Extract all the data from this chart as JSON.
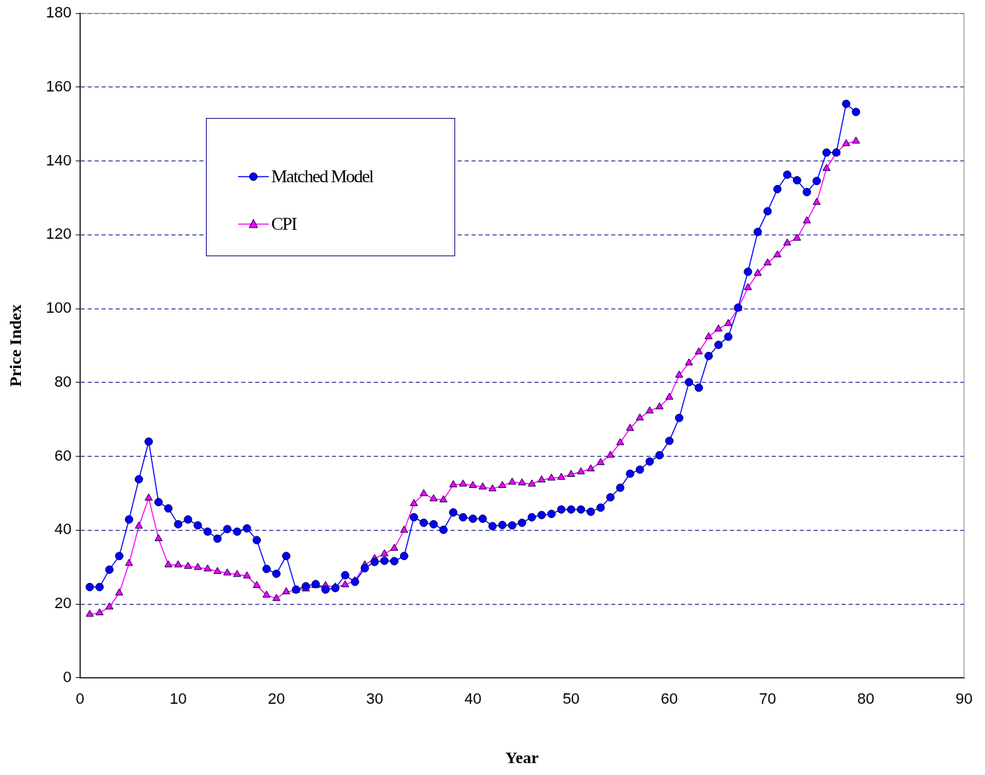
{
  "chart_data": {
    "type": "line",
    "xlabel": "Year",
    "ylabel": "Price Index",
    "x": [
      1,
      2,
      3,
      4,
      5,
      6,
      7,
      8,
      9,
      10,
      11,
      12,
      13,
      14,
      15,
      16,
      17,
      18,
      19,
      20,
      21,
      22,
      23,
      24,
      25,
      26,
      27,
      28,
      29,
      30,
      31,
      32,
      33,
      34,
      35,
      36,
      37,
      38,
      39,
      40,
      41,
      42,
      43,
      44,
      45,
      46,
      47,
      48,
      49,
      50,
      51,
      52,
      53,
      54,
      55,
      56,
      57,
      58,
      59,
      60,
      61,
      62,
      63,
      64,
      65,
      66,
      67,
      68,
      69,
      70,
      71,
      72,
      73,
      74,
      75,
      76,
      77,
      78,
      79
    ],
    "series": [
      {
        "name": "Matched Model",
        "color": "#0000ff",
        "marker": "circle",
        "values": [
          24.6,
          24.6,
          29.3,
          33.0,
          42.9,
          53.8,
          64.0,
          47.6,
          45.9,
          41.6,
          42.9,
          41.3,
          39.6,
          37.7,
          40.3,
          39.6,
          40.5,
          37.3,
          29.5,
          28.2,
          33.0,
          23.9,
          24.8,
          25.4,
          23.9,
          24.3,
          27.8,
          26.0,
          29.7,
          31.4,
          31.7,
          31.6,
          33.0,
          43.5,
          42.0,
          41.6,
          40.1,
          44.8,
          43.5,
          43.1,
          43.1,
          41.1,
          41.4,
          41.3,
          42.0,
          43.5,
          44.1,
          44.4,
          45.6,
          45.6,
          45.6,
          45.0,
          46.1,
          48.9,
          51.5,
          55.3,
          56.4,
          58.6,
          60.3,
          64.2,
          70.4,
          80.1,
          78.6,
          87.2,
          90.2,
          92.4,
          100.3,
          110.0,
          120.8,
          126.4,
          132.4,
          136.3,
          134.8,
          131.6,
          134.6,
          142.3,
          142.3,
          155.5,
          153.3
        ]
      },
      {
        "name": "CPI",
        "color": "#ff00ff",
        "marker": "triangle",
        "values": [
          17.2,
          17.6,
          19.2,
          23.0,
          31.0,
          41.1,
          48.7,
          37.7,
          30.6,
          30.6,
          30.2,
          29.9,
          29.5,
          28.8,
          28.4,
          28.0,
          27.6,
          25.0,
          22.4,
          21.5,
          23.3,
          23.7,
          24.1,
          25.0,
          25.0,
          24.6,
          25.2,
          26.3,
          30.6,
          32.3,
          33.6,
          35.1,
          40.0,
          47.2,
          49.9,
          48.5,
          48.2,
          52.3,
          52.5,
          52.1,
          51.7,
          51.2,
          52.1,
          53.0,
          52.8,
          52.5,
          53.6,
          54.1,
          54.3,
          55.1,
          55.8,
          56.6,
          58.3,
          60.3,
          63.7,
          67.6,
          70.4,
          72.3,
          73.4,
          76.0,
          82.0,
          85.3,
          88.3,
          92.4,
          94.5,
          96.0,
          100.1,
          105.7,
          109.6,
          112.4,
          114.6,
          117.8,
          119.1,
          123.8,
          128.8,
          138.0,
          142.3,
          144.7,
          145.4
        ]
      }
    ],
    "xlim": [
      0,
      90
    ],
    "xticks": [
      0,
      10,
      20,
      30,
      40,
      50,
      60,
      70,
      80,
      90
    ],
    "ylim": [
      0,
      180
    ],
    "yticks": [
      0,
      20,
      40,
      60,
      80,
      100,
      120,
      140,
      160,
      180
    ],
    "grid": "y",
    "legend": "top left",
    "line_style": "solid"
  }
}
